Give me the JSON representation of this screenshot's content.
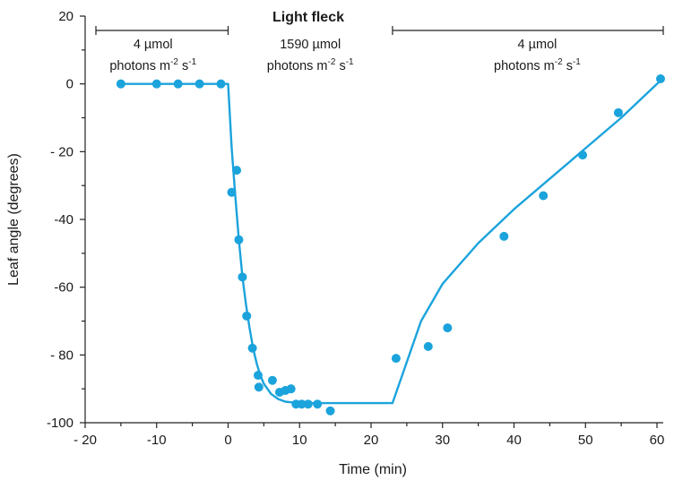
{
  "chart_data": {
    "type": "scatter",
    "title": "Light fleck",
    "xlabel": "Time (min)",
    "ylabel": "Leaf angle (degrees)",
    "xlim": [
      -20,
      60
    ],
    "ylim": [
      -100,
      20
    ],
    "x_ticks": [
      -20,
      -10,
      0,
      10,
      20,
      30,
      40,
      50,
      60
    ],
    "y_ticks": [
      20,
      0,
      -20,
      -40,
      -60,
      -80,
      -100
    ],
    "x_tick_labels": [
      "- 20",
      "-10",
      "0",
      "10",
      "20",
      "30",
      "40",
      "50",
      "60"
    ],
    "y_tick_labels": [
      "20",
      "0",
      "- 20",
      "-40",
      "-60",
      "- 80",
      "-100"
    ],
    "grid": false,
    "color": "#1ba3dc",
    "periods": [
      {
        "line1": "4 µmol",
        "line2": "photons m",
        "sup1": "-2",
        "mid": " s",
        "sup2": "-1",
        "start": -20,
        "end": 0
      },
      {
        "line1": "1590 µmol",
        "line2": "photons m",
        "sup1": "-2",
        "mid": " s",
        "sup2": "-1",
        "start": 0,
        "end": 23
      },
      {
        "line1": "4 µmol",
        "line2": "photons m",
        "sup1": "-2",
        "mid": " s",
        "sup2": "-1",
        "start": 23,
        "end": 60
      }
    ],
    "series": [
      {
        "kind": "points",
        "x": [
          -15,
          -10,
          -7,
          -4,
          -1,
          0.5,
          1.2,
          1.5,
          2,
          2.6,
          3.4,
          4.2,
          4.3,
          6.2,
          7.2,
          8,
          8.8,
          9.5,
          10.3,
          11.2,
          12.5,
          14.3,
          23.5,
          28,
          30.7,
          38.6,
          44.1,
          49.6,
          54.6,
          60.5
        ],
        "y": [
          0,
          0,
          0,
          0,
          0,
          -32,
          -25.5,
          -46,
          -57,
          -68.5,
          -78,
          -86,
          -89.5,
          -87.5,
          -91,
          -90.5,
          -90,
          -94.5,
          -94.5,
          -94.5,
          -94.5,
          -96.5,
          -81,
          -77.5,
          -72,
          -45,
          -33,
          -21,
          -8.5,
          1.5
        ]
      },
      {
        "kind": "line",
        "x": [
          -15,
          0,
          0.5,
          1,
          1.5,
          2,
          2.5,
          3,
          3.5,
          4,
          4.5,
          5,
          6,
          7,
          8,
          9,
          10,
          23,
          27,
          30,
          35,
          40,
          45,
          50,
          55,
          61
        ],
        "y": [
          0,
          0,
          -19,
          -33,
          -46,
          -57,
          -65,
          -72,
          -78,
          -82.5,
          -86,
          -88.5,
          -91.5,
          -93,
          -93.8,
          -94,
          -94.2,
          -94.2,
          -70,
          -59,
          -47,
          -37,
          -28,
          -19,
          -10,
          2
        ]
      }
    ]
  }
}
